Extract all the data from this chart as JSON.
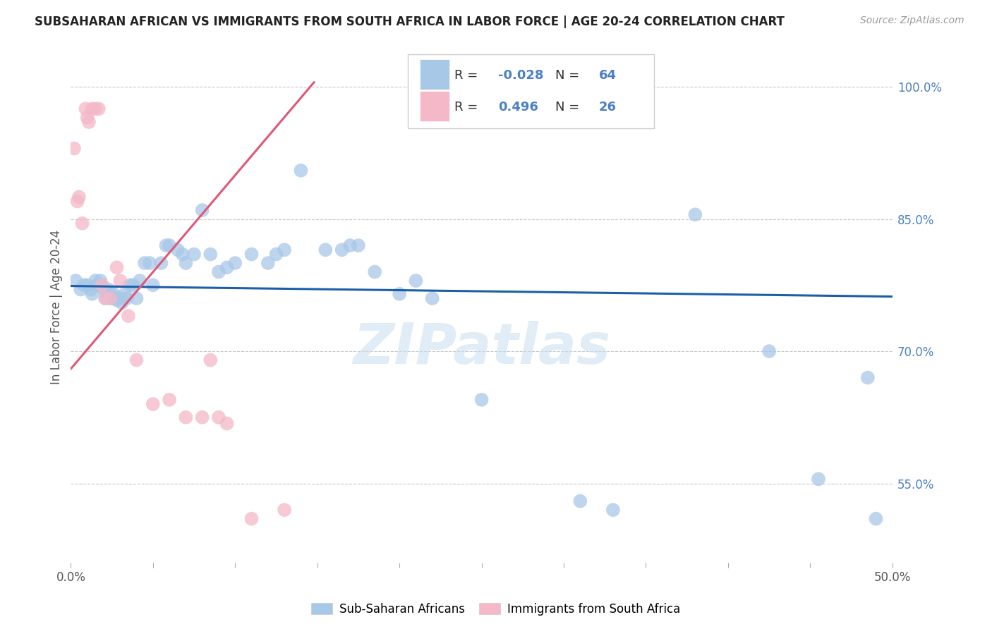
{
  "title": "SUBSAHARAN AFRICAN VS IMMIGRANTS FROM SOUTH AFRICA IN LABOR FORCE | AGE 20-24 CORRELATION CHART",
  "source": "Source: ZipAtlas.com",
  "ylabel": "In Labor Force | Age 20-24",
  "xlim": [
    0.0,
    0.5
  ],
  "ylim": [
    0.46,
    1.04
  ],
  "xtick_vals": [
    0.0,
    0.05,
    0.1,
    0.15,
    0.2,
    0.25,
    0.3,
    0.35,
    0.4,
    0.45,
    0.5
  ],
  "xtick_labels_show": {
    "0.0": "0.0%",
    "0.5": "50.0%"
  },
  "ytick_vals": [
    0.55,
    0.7,
    0.85,
    1.0
  ],
  "ytick_labels": [
    "55.0%",
    "70.0%",
    "85.0%",
    "100.0%"
  ],
  "blue_scatter_x": [
    0.003,
    0.006,
    0.008,
    0.01,
    0.012,
    0.013,
    0.015,
    0.016,
    0.018,
    0.019,
    0.02,
    0.021,
    0.022,
    0.023,
    0.024,
    0.025,
    0.026,
    0.027,
    0.028,
    0.029,
    0.03,
    0.031,
    0.033,
    0.034,
    0.036,
    0.038,
    0.04,
    0.042,
    0.045,
    0.048,
    0.05,
    0.055,
    0.058,
    0.06,
    0.065,
    0.068,
    0.07,
    0.075,
    0.08,
    0.085,
    0.09,
    0.095,
    0.1,
    0.11,
    0.12,
    0.125,
    0.13,
    0.14,
    0.155,
    0.165,
    0.17,
    0.175,
    0.185,
    0.2,
    0.21,
    0.22,
    0.25,
    0.31,
    0.33,
    0.38,
    0.425,
    0.455,
    0.485,
    0.49
  ],
  "blue_scatter_y": [
    0.78,
    0.77,
    0.775,
    0.775,
    0.77,
    0.765,
    0.78,
    0.775,
    0.78,
    0.775,
    0.77,
    0.76,
    0.765,
    0.77,
    0.76,
    0.76,
    0.765,
    0.76,
    0.758,
    0.76,
    0.76,
    0.755,
    0.765,
    0.76,
    0.775,
    0.775,
    0.76,
    0.78,
    0.8,
    0.8,
    0.775,
    0.8,
    0.82,
    0.82,
    0.815,
    0.81,
    0.8,
    0.81,
    0.86,
    0.81,
    0.79,
    0.795,
    0.8,
    0.81,
    0.8,
    0.81,
    0.815,
    0.905,
    0.815,
    0.815,
    0.82,
    0.82,
    0.79,
    0.765,
    0.78,
    0.76,
    0.645,
    0.53,
    0.52,
    0.855,
    0.7,
    0.555,
    0.67,
    0.51
  ],
  "pink_scatter_x": [
    0.002,
    0.004,
    0.005,
    0.007,
    0.009,
    0.01,
    0.011,
    0.013,
    0.015,
    0.017,
    0.019,
    0.021,
    0.024,
    0.028,
    0.03,
    0.035,
    0.04,
    0.05,
    0.06,
    0.07,
    0.08,
    0.085,
    0.09,
    0.095,
    0.11,
    0.13
  ],
  "pink_scatter_y": [
    0.93,
    0.87,
    0.875,
    0.845,
    0.975,
    0.965,
    0.96,
    0.975,
    0.975,
    0.975,
    0.775,
    0.76,
    0.76,
    0.795,
    0.78,
    0.74,
    0.69,
    0.64,
    0.645,
    0.625,
    0.625,
    0.69,
    0.625,
    0.618,
    0.51,
    0.52
  ],
  "blue_line_x": [
    0.0,
    0.5
  ],
  "blue_line_y": [
    0.774,
    0.762
  ],
  "pink_line_x": [
    0.0,
    0.148
  ],
  "pink_line_y": [
    0.68,
    1.005
  ],
  "blue_color": "#a8c8e8",
  "pink_color": "#f4b8c8",
  "blue_line_color": "#1a5fa8",
  "pink_line_color": "#e05878",
  "R_blue": "-0.028",
  "N_blue": "64",
  "R_pink": "0.496",
  "N_pink": "26",
  "legend_label_blue": "Sub-Saharan Africans",
  "legend_label_pink": "Immigrants from South Africa",
  "watermark": "ZIPatlas",
  "background_color": "#ffffff",
  "grid_color": "#c8c8c8",
  "r_value_color": "#4a7fc4",
  "n_label_color": "#333333"
}
